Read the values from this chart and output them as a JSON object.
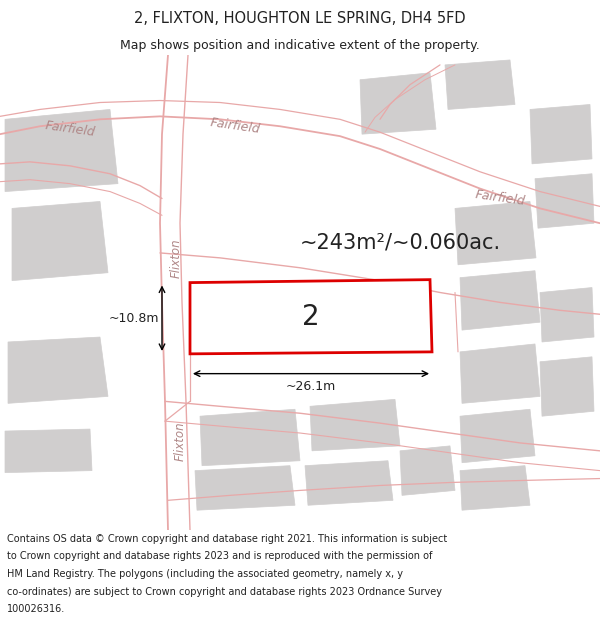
{
  "title_line1": "2, FLIXTON, HOUGHTON LE SPRING, DH4 5FD",
  "title_line2": "Map shows position and indicative extent of the property.",
  "area_text": "~243m²/~0.060ac.",
  "label_number": "2",
  "dim_width": "~26.1m",
  "dim_height": "~10.8m",
  "footer_lines": [
    "Contains OS data © Crown copyright and database right 2021. This information is subject",
    "to Crown copyright and database rights 2023 and is reproduced with the permission of",
    "HM Land Registry. The polygons (including the associated geometry, namely x, y",
    "co-ordinates) are subject to Crown copyright and database rights 2023 Ordnance Survey",
    "100026316."
  ],
  "map_bg": "#f2f0f0",
  "road_color": "#e8a8a8",
  "plot_outline_color": "#dd0000",
  "text_color": "#222222",
  "gray_block": "#d0cece",
  "title_fontsize": 10.5,
  "subtitle_fontsize": 9,
  "footer_fontsize": 7.0,
  "area_fontsize": 15,
  "label_fontsize": 20,
  "dim_fontsize": 9,
  "road_label_color": "#b08888",
  "road_label_fontsize": 8.5
}
